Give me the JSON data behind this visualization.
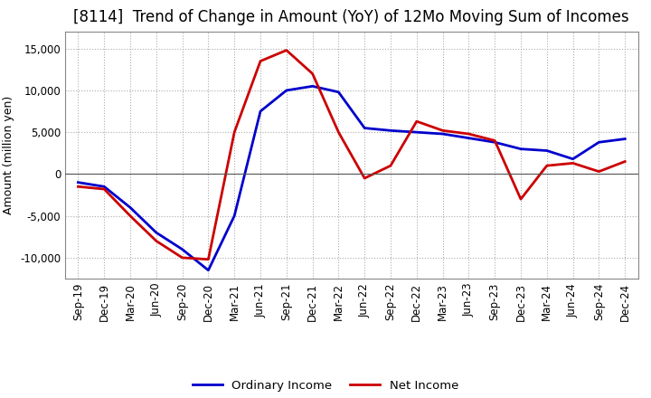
{
  "title": "[8114]  Trend of Change in Amount (YoY) of 12Mo Moving Sum of Incomes",
  "ylabel": "Amount (million yen)",
  "ylim": [
    -12500,
    17000
  ],
  "yticks": [
    -10000,
    -5000,
    0,
    5000,
    10000,
    15000
  ],
  "x_labels": [
    "Sep-19",
    "Dec-19",
    "Mar-20",
    "Jun-20",
    "Sep-20",
    "Dec-20",
    "Mar-21",
    "Jun-21",
    "Sep-21",
    "Dec-21",
    "Mar-22",
    "Jun-22",
    "Sep-22",
    "Dec-22",
    "Mar-23",
    "Jun-23",
    "Sep-23",
    "Dec-23",
    "Mar-24",
    "Jun-24",
    "Sep-24",
    "Dec-24"
  ],
  "ordinary_income": [
    -1000,
    -1500,
    -4000,
    -7000,
    -9000,
    -11500,
    -5000,
    7500,
    10000,
    10500,
    9800,
    5500,
    5200,
    5000,
    4800,
    4300,
    3800,
    3000,
    2800,
    1800,
    3800,
    4200
  ],
  "net_income": [
    -1500,
    -1800,
    -5000,
    -8000,
    -10000,
    -10200,
    5000,
    13500,
    14800,
    12000,
    5000,
    -500,
    1000,
    6300,
    5200,
    4800,
    4000,
    -3000,
    1000,
    1300,
    300,
    1500
  ],
  "ordinary_color": "#0000cc",
  "net_color": "#cc0000",
  "grid_color": "#aaaaaa",
  "background_color": "#ffffff",
  "title_fontsize": 12,
  "label_fontsize": 9,
  "tick_fontsize": 8.5
}
